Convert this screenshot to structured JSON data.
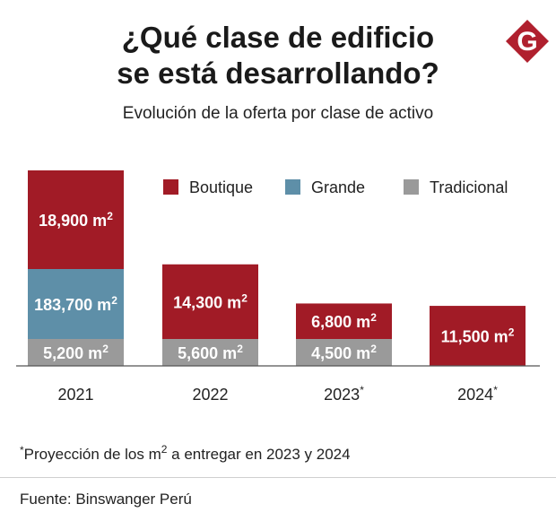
{
  "title_line1": "¿Qué clase de edificio",
  "title_line2": "se está desarrollando?",
  "subtitle": "Evolución de la oferta por clase de activo",
  "logo": {
    "icon": "G-logo",
    "color": "#b0202e",
    "letter": "G"
  },
  "chart_data": {
    "type": "bar",
    "stacked": true,
    "unit": "m2",
    "categories": [
      "2021",
      "2022",
      "2023",
      "2024"
    ],
    "category_marks": [
      "",
      "",
      "*",
      "*"
    ],
    "series": [
      {
        "name": "Tradicional",
        "color": "#9a9a9a",
        "values": [
          5200,
          5600,
          4500,
          0
        ],
        "labels": [
          "5,200 m",
          "5,600 m",
          "4,500 m",
          ""
        ]
      },
      {
        "name": "Grande",
        "color": "#5e8fa8",
        "values": [
          183700,
          0,
          0,
          0
        ],
        "labels": [
          "183,700 m",
          "",
          "",
          ""
        ]
      },
      {
        "name": "Boutique",
        "color": "#a11b26",
        "values": [
          18900,
          14300,
          6800,
          11500
        ],
        "labels": [
          "18,900 m",
          "14,300 m",
          "6,800 m",
          "11,500 m"
        ]
      }
    ],
    "legend": [
      "Boutique",
      "Grande",
      "Tradicional"
    ],
    "legend_position": "top-right",
    "superscript": "2"
  },
  "footnote_mark": "*",
  "footnote_text": "Proyección de los m",
  "footnote_sup": "2",
  "footnote_rest": " a entregar en 2023 y 2024",
  "source": "Fuente: Binswanger Perú"
}
